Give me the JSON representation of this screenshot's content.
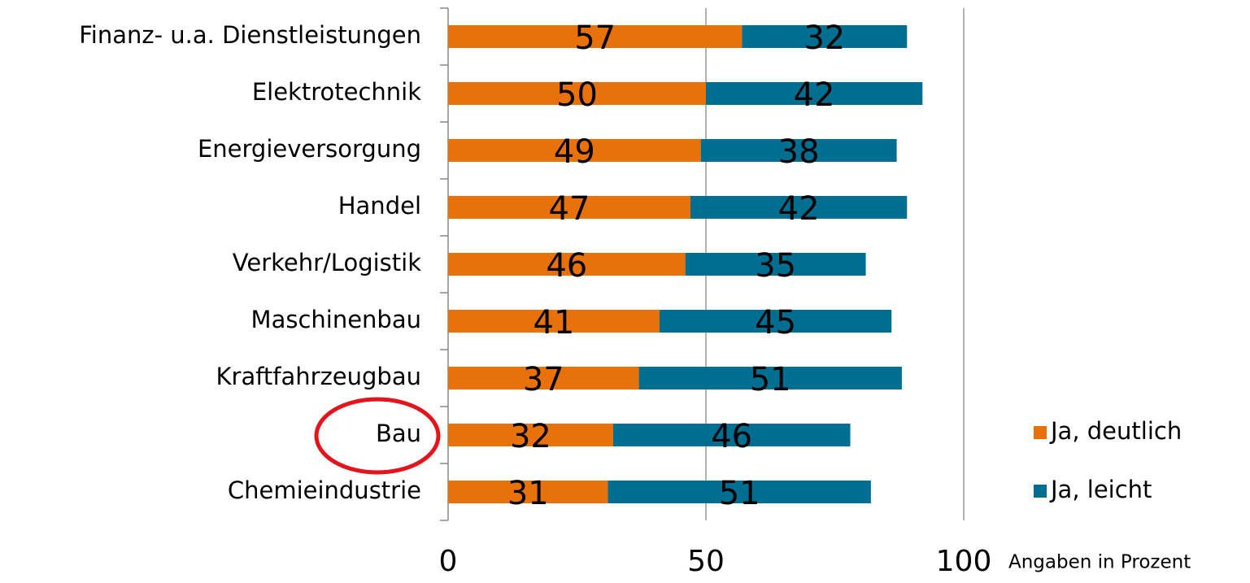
{
  "chart_data": {
    "type": "stacked_barh",
    "categories": [
      "Finanz- u.a. Dienstleistungen",
      "Elektrotechnik",
      "Energieversorgung",
      "Handel",
      "Verkehr/Logistik",
      "Maschinenbau",
      "Kraftfahrzeugbau",
      "Bau",
      "Chemieindustrie"
    ],
    "series": [
      {
        "name": "Ja, deutlich",
        "color": "#e8710a",
        "values": [
          57,
          50,
          49,
          47,
          46,
          41,
          37,
          32,
          31
        ]
      },
      {
        "name": "Ja, leicht",
        "color": "#006e91",
        "values": [
          32,
          42,
          38,
          42,
          35,
          45,
          51,
          46,
          51
        ]
      }
    ],
    "x_label": "Angaben in Prozent",
    "xlim": [
      0,
      100
    ],
    "xticks": [
      0,
      50,
      100
    ],
    "grid": true,
    "legend": "right"
  }
}
